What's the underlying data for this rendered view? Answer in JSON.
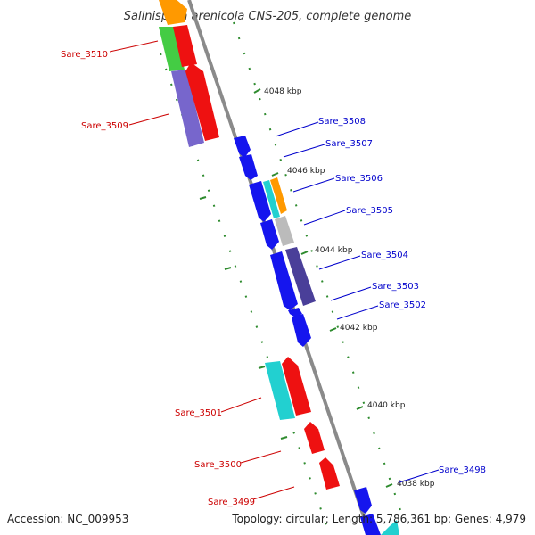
{
  "title": "Salinispora arenicola CNS-205, complete genome",
  "accession_text": "Accession: NC_009953",
  "summary_text": "Topology: circular; Length: 5,786,361 bp; Genes: 4,979",
  "kbp_labels": [
    "4048 kbp",
    "4046 kbp",
    "4044 kbp",
    "4042 kbp",
    "4040 kbp",
    "4038 kbp"
  ],
  "left_genes": [
    "Sare_3510",
    "Sare_3509",
    "Sare_3501",
    "Sare_3500",
    "Sare_3499"
  ],
  "right_genes": [
    "Sare_3508",
    "Sare_3507",
    "Sare_3506",
    "Sare_3505",
    "Sare_3504",
    "Sare_3503",
    "Sare_3502",
    "Sare_3498"
  ],
  "colors": {
    "left_label": "#cc0000",
    "right_label": "#0000cc",
    "backbone": "#8a8a8a",
    "tick": "#2e8b2e",
    "red": "#ee1111",
    "green": "#44cc44",
    "purple": "#7766cc",
    "blue": "#1515ee",
    "cyan": "#22d0d0",
    "orange": "#ff9900",
    "grey": "#bbbbbb",
    "darkpurple": "#4a3f99"
  }
}
